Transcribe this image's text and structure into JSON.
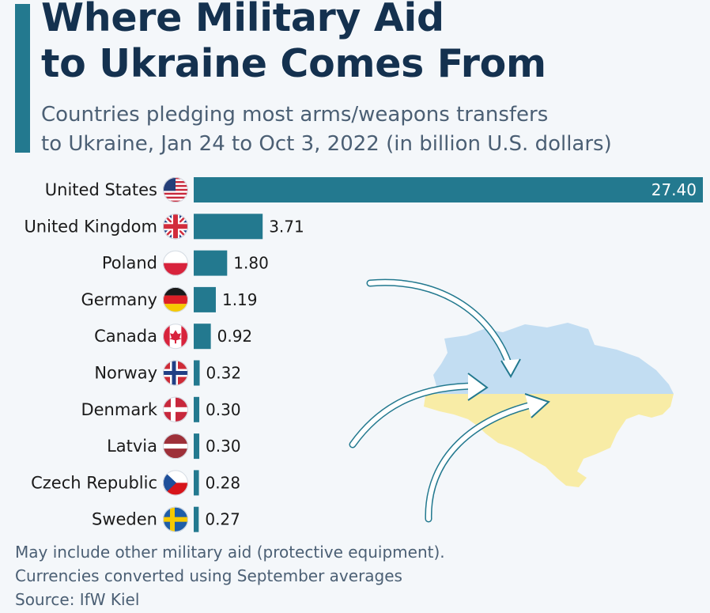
{
  "header": {
    "title_line1": "Where Military Aid",
    "title_line2": "to Ukraine Comes From",
    "subtitle_line1": "Countries pledging most arms/weapons transfers",
    "subtitle_line2": "to Ukraine, Jan 24 to Oct 3, 2022 (in billion U.S. dollars)"
  },
  "chart_data": {
    "type": "bar",
    "orientation": "horizontal",
    "title": "Where Military Aid to Ukraine Comes From",
    "subtitle": "Countries pledging most arms/weapons transfers to Ukraine, Jan 24 to Oct 3, 2022 (in billion U.S. dollars)",
    "categories": [
      "United States",
      "United Kingdom",
      "Poland",
      "Germany",
      "Canada",
      "Norway",
      "Denmark",
      "Latvia",
      "Czech Republic",
      "Sweden"
    ],
    "values": [
      27.4,
      3.71,
      1.8,
      1.19,
      0.92,
      0.32,
      0.3,
      0.3,
      0.28,
      0.27
    ],
    "value_labels": [
      "27.40",
      "3.71",
      "1.80",
      "1.19",
      "0.92",
      "0.32",
      "0.30",
      "0.30",
      "0.28",
      "0.27"
    ],
    "flags": [
      "flag-us-icon",
      "flag-uk-icon",
      "flag-poland-icon",
      "flag-germany-icon",
      "flag-canada-icon",
      "flag-norway-icon",
      "flag-denmark-icon",
      "flag-latvia-icon",
      "flag-czech-icon",
      "flag-sweden-icon"
    ],
    "xlim": [
      0,
      27.4
    ],
    "grid": false,
    "bar_color": "#23798f"
  },
  "colors": {
    "accent": "#23798f",
    "title": "#14314f",
    "subtitle": "#4b5f74",
    "background": "#f4f7fa",
    "map_blue": "#c2ddf2",
    "map_yellow": "#f8eca6"
  },
  "illustration": {
    "map_icon": "ukraine-map-flag-icon",
    "arrows_icon": "incoming-arrows-icon"
  },
  "footer": {
    "note_line1": "May include other military aid (protective equipment).",
    "note_line2": "Currencies converted using September averages",
    "source": "Source: IfW Kiel"
  }
}
